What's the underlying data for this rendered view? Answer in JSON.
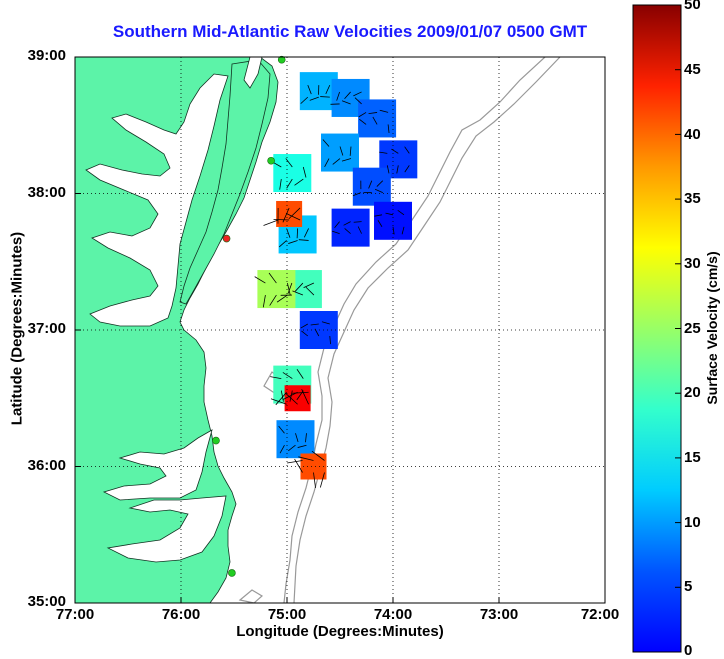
{
  "title": "Southern Mid-Atlantic Raw Velocities 2009/01/07 0500 GMT",
  "axes": {
    "xlabel": "Longitude (Degrees:Minutes)",
    "ylabel": "Latitude (Degrees:Minutes)",
    "xticks": [
      "77:00",
      "76:00",
      "75:00",
      "74:00",
      "73:00",
      "72:00"
    ],
    "yticks": [
      "39:00",
      "38:00",
      "37:00",
      "36:00",
      "35:00"
    ],
    "grid": "dotted"
  },
  "colorbar": {
    "label": "Surface Velocity (cm/s)",
    "ticks": [
      "50",
      "45",
      "40",
      "35",
      "30",
      "25",
      "20",
      "15",
      "10",
      "5",
      "0"
    ],
    "range": [
      0,
      50
    ],
    "colormap": "jet"
  },
  "colors": {
    "land": "#5cf3a8",
    "water": "#ffffff",
    "title": "#1a1aff",
    "bathymetry": "#999999",
    "station_green": "#22cc22",
    "station_red": "#ee2222"
  },
  "velocity_patches": [
    {
      "lon": -74.7,
      "lat": 38.75,
      "speed": 15
    },
    {
      "lon": -74.4,
      "lat": 38.7,
      "speed": 13
    },
    {
      "lon": -74.15,
      "lat": 38.55,
      "speed": 11
    },
    {
      "lon": -73.95,
      "lat": 38.25,
      "speed": 9
    },
    {
      "lon": -74.5,
      "lat": 38.3,
      "speed": 14
    },
    {
      "lon": -74.2,
      "lat": 38.05,
      "speed": 10
    },
    {
      "lon": -74.4,
      "lat": 37.75,
      "speed": 8
    },
    {
      "lon": -74.0,
      "lat": 37.8,
      "speed": 7
    },
    {
      "lon": -74.95,
      "lat": 38.15,
      "speed": 20
    },
    {
      "lon": -74.9,
      "lat": 37.7,
      "speed": 16
    },
    {
      "lon": -74.85,
      "lat": 37.3,
      "speed": 22
    },
    {
      "lon": -74.7,
      "lat": 37.0,
      "speed": 9
    },
    {
      "lon": -74.95,
      "lat": 36.6,
      "speed": 22
    },
    {
      "lon": -74.92,
      "lat": 36.2,
      "speed": 13
    },
    {
      "lon": -74.98,
      "lat": 37.85,
      "speed": 40
    },
    {
      "lon": -74.9,
      "lat": 36.5,
      "speed": 44
    },
    {
      "lon": -74.75,
      "lat": 36.0,
      "speed": 40
    },
    {
      "lon": -75.1,
      "lat": 37.3,
      "speed": 27
    }
  ],
  "stations": [
    {
      "lon": -75.05,
      "lat": 38.98,
      "color": "green"
    },
    {
      "lon": -75.15,
      "lat": 38.24,
      "color": "green"
    },
    {
      "lon": -75.57,
      "lat": 37.67,
      "color": "red"
    },
    {
      "lon": -75.67,
      "lat": 36.19,
      "color": "green"
    },
    {
      "lon": -75.52,
      "lat": 35.22,
      "color": "green"
    }
  ]
}
